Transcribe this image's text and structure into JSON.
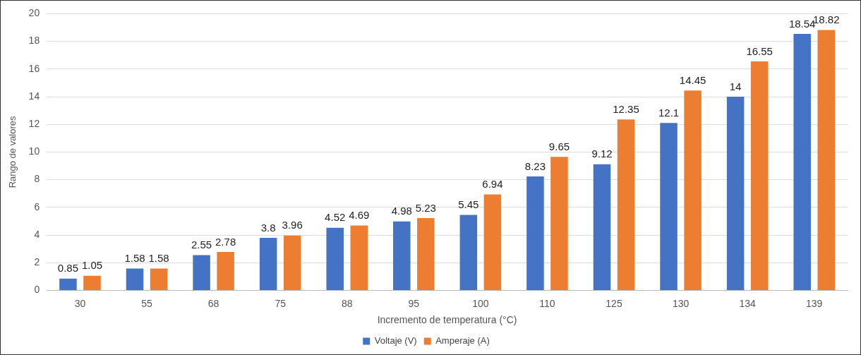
{
  "chart_data": {
    "type": "bar",
    "categories": [
      "30",
      "55",
      "68",
      "75",
      "88",
      "95",
      "100",
      "110",
      "125",
      "130",
      "134",
      "139"
    ],
    "series": [
      {
        "name": "Voltaje (V)",
        "color": "#4472c4",
        "values": [
          0.85,
          1.58,
          2.55,
          3.8,
          4.52,
          4.98,
          5.45,
          8.23,
          9.12,
          12.1,
          14,
          18.54
        ]
      },
      {
        "name": "Amperaje (A)",
        "color": "#ed7d31",
        "values": [
          1.05,
          1.58,
          2.78,
          3.96,
          4.69,
          5.23,
          6.94,
          9.65,
          12.35,
          14.45,
          16.55,
          18.82
        ]
      }
    ],
    "xlabel": "Incremento de temperatura (°C)",
    "ylabel": "Rango de valores",
    "ylim": [
      0,
      20
    ],
    "yticks": [
      0,
      2,
      4,
      6,
      8,
      10,
      12,
      14,
      16,
      18,
      20
    ],
    "grid": "y",
    "legend": "bottom",
    "data_labels": true
  }
}
